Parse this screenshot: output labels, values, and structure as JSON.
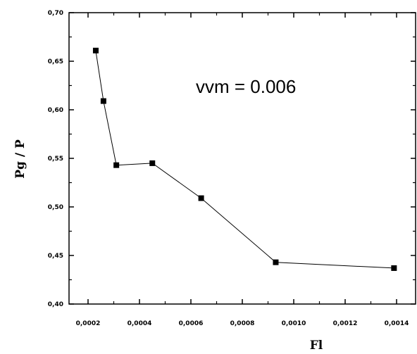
{
  "chart_data": {
    "type": "line",
    "xlabel": "Fl",
    "ylabel": "Pg / P",
    "annotation": "vvm = 0.006",
    "xlim": [
      0.0,
      0.00145
    ],
    "ylim": [
      0.4,
      0.7
    ],
    "x_ticks": [
      0.0002,
      0.0004,
      0.0006,
      0.0008,
      0.001,
      0.0012,
      0.0014
    ],
    "x_tick_labels": [
      "0,0002",
      "0,0004",
      "0,0006",
      "0,0008",
      "0,0010",
      "0,0012",
      "0,0014"
    ],
    "y_ticks": [
      0.4,
      0.45,
      0.5,
      0.55,
      0.6,
      0.65,
      0.7
    ],
    "y_tick_labels": [
      "0,40",
      "0,45",
      "0,50",
      "0,55",
      "0,60",
      "0,65",
      "0,70"
    ],
    "series": [
      {
        "x": [
          0.00023,
          0.00026,
          0.00031,
          0.00045,
          0.00064,
          0.00093,
          0.00139
        ],
        "y": [
          0.661,
          0.609,
          0.543,
          0.545,
          0.509,
          0.443,
          0.437
        ]
      }
    ],
    "grid": false,
    "colors": {
      "line": "#000000",
      "marker": "#000000"
    }
  }
}
